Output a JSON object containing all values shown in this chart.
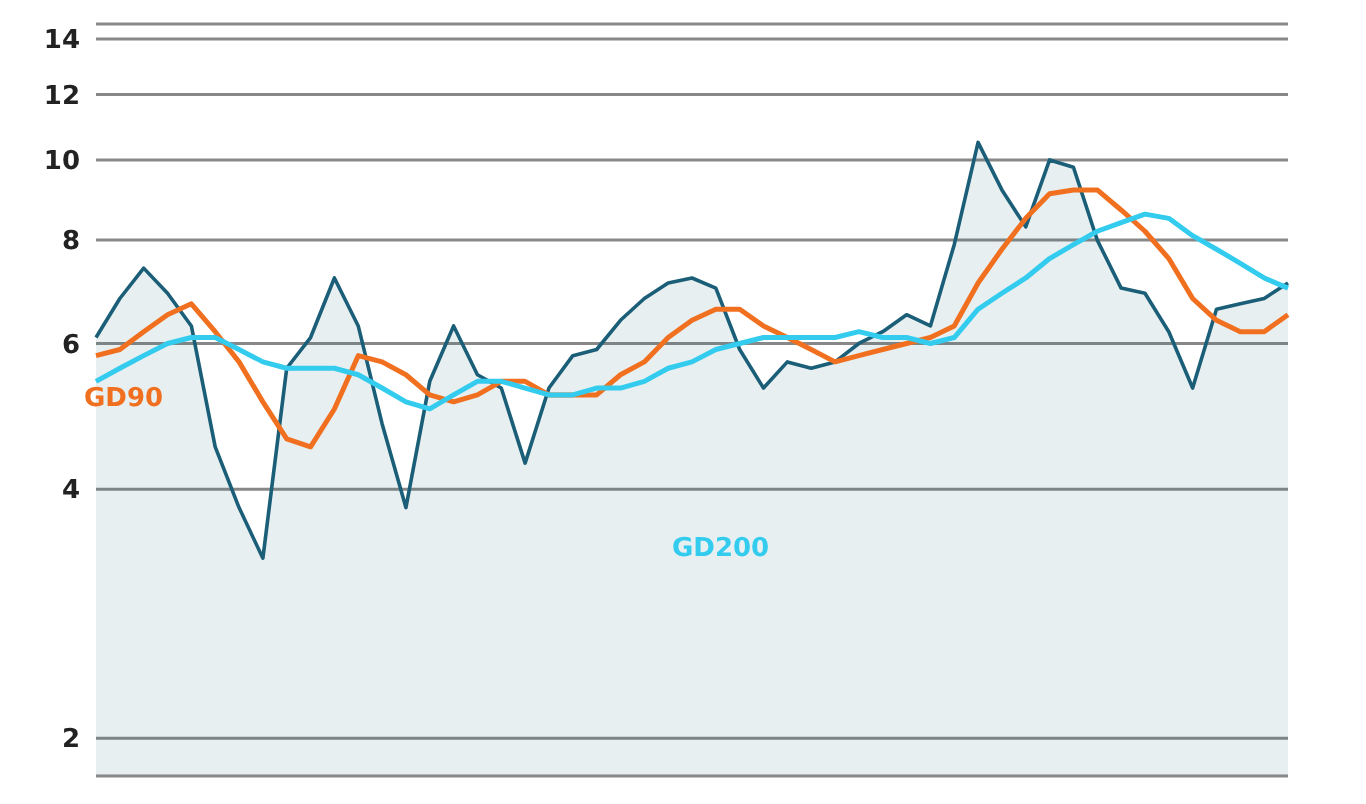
{
  "chart_data": {
    "type": "line",
    "log": "y",
    "grid": "y",
    "tick_labels": "y",
    "marker": "none",
    "legend": false,
    "categories": [
      null,
      null,
      null,
      null,
      null,
      null,
      null,
      null,
      null,
      null,
      null,
      null,
      null,
      null,
      null,
      null,
      null,
      null,
      null,
      null,
      null,
      null,
      null,
      null,
      null,
      null,
      null,
      null,
      null,
      null,
      null,
      null,
      null,
      null,
      null,
      null,
      null,
      null,
      null,
      null,
      null,
      null,
      null,
      null,
      null,
      null,
      null,
      null,
      null,
      null,
      null
    ],
    "ylim": [
      1.8,
      14.6
    ],
    "yticks": [
      2,
      4,
      6,
      8,
      10,
      12,
      14
    ],
    "series": [
      {
        "type": "area",
        "color": "#1b5e78",
        "values": [
          6.1,
          6.8,
          7.4,
          6.9,
          6.3,
          4.5,
          3.8,
          3.3,
          5.6,
          6.1,
          7.2,
          6.3,
          4.8,
          3.8,
          5.4,
          6.3,
          5.5,
          5.3,
          4.3,
          5.3,
          5.8,
          5.9,
          6.4,
          6.8,
          7.1,
          7.2,
          7.0,
          5.9,
          5.3,
          5.7,
          5.6,
          5.7,
          6.0,
          6.2,
          6.5,
          6.3,
          7.9,
          10.5,
          9.2,
          8.3,
          10.0,
          9.8,
          8.0,
          7.0,
          6.9,
          6.2,
          5.3,
          6.6,
          6.7,
          6.8,
          7.1
        ]
      },
      {
        "name": "GD90",
        "color": "#f07020",
        "values": [
          5.8,
          5.9,
          6.2,
          6.5,
          6.7,
          6.2,
          5.7,
          5.1,
          4.6,
          4.5,
          5.0,
          5.8,
          5.7,
          5.5,
          5.2,
          5.1,
          5.2,
          5.4,
          5.4,
          5.2,
          5.2,
          5.2,
          5.5,
          5.7,
          6.1,
          6.4,
          6.6,
          6.6,
          6.3,
          6.1,
          5.9,
          5.7,
          5.8,
          5.9,
          6.0,
          6.1,
          6.3,
          7.1,
          7.8,
          8.5,
          9.1,
          9.2,
          9.2,
          8.7,
          8.2,
          7.6,
          6.8,
          6.4,
          6.2,
          6.2,
          6.5
        ]
      },
      {
        "name": "GD200",
        "color": "#33ccee",
        "values": [
          5.4,
          5.6,
          5.8,
          6.0,
          6.1,
          6.1,
          5.9,
          5.7,
          5.6,
          5.6,
          5.6,
          5.5,
          5.3,
          5.1,
          5.0,
          5.2,
          5.4,
          5.4,
          5.3,
          5.2,
          5.2,
          5.3,
          5.3,
          5.4,
          5.6,
          5.7,
          5.9,
          6.0,
          6.1,
          6.1,
          6.1,
          6.1,
          6.2,
          6.1,
          6.1,
          6.0,
          6.1,
          6.6,
          6.9,
          7.2,
          7.6,
          7.9,
          8.2,
          8.4,
          8.6,
          8.5,
          8.1,
          7.8,
          7.5,
          7.2,
          7.0
        ]
      }
    ]
  }
}
